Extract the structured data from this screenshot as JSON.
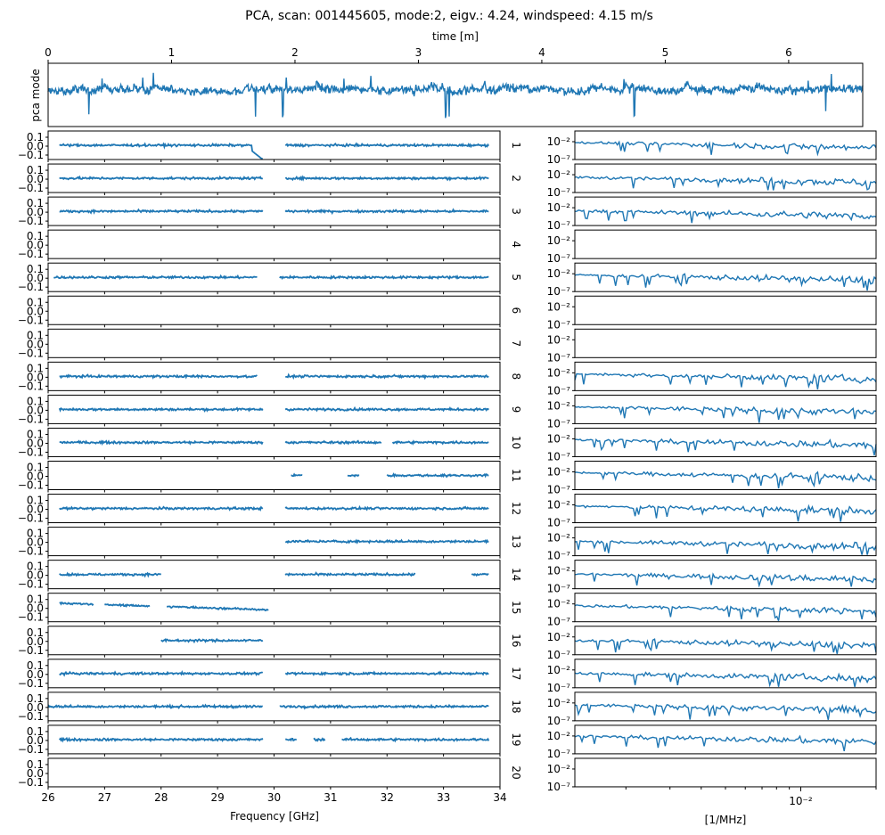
{
  "figure": {
    "title": "PCA, scan: 001445605, mode:2, eigv.: 4.24, windspeed: 4.15 m/s",
    "series_color": "#1f77b4"
  },
  "chart_data": [
    {
      "id": "timeseries",
      "type": "line",
      "xlabel": "time [m]",
      "ylabel": "pca mode",
      "xlim": [
        0,
        6.6
      ],
      "xticks": [
        "0",
        "1",
        "2",
        "3",
        "4",
        "5",
        "6"
      ],
      "yticks_visible": false,
      "description_of_data": "noisy PCA mode time series oscillating around zero with occasional negative spikes",
      "spikes_at_minutes": [
        0.33,
        1.68,
        1.9,
        3.22,
        3.25,
        4.75,
        6.3
      ]
    },
    {
      "id": "spectra",
      "type": "line",
      "xlabel": "Frequency [GHz]",
      "xlim": [
        26,
        34
      ],
      "xticks": [
        "26",
        "27",
        "28",
        "29",
        "30",
        "31",
        "32",
        "33",
        "34"
      ],
      "ylim": [
        -0.15,
        0.17
      ],
      "yticks": [
        "0.1",
        "0.0",
        "−0.1"
      ],
      "panel_labels": [
        "1",
        "2",
        "3",
        "4",
        "5",
        "6",
        "7",
        "8",
        "9",
        "10",
        "11",
        "12",
        "13",
        "14",
        "15",
        "16",
        "17",
        "18",
        "19",
        "20"
      ],
      "empty_panels": [
        "4",
        "6",
        "7",
        "20"
      ],
      "segments_ghz": {
        "1": [
          [
            26.2,
            29.8
          ],
          [
            30.2,
            33.8
          ]
        ],
        "2": [
          [
            26.2,
            29.8
          ],
          [
            30.2,
            33.8
          ]
        ],
        "3": [
          [
            26.2,
            29.8
          ],
          [
            30.2,
            33.8
          ]
        ],
        "5": [
          [
            26.1,
            29.7
          ],
          [
            30.1,
            33.8
          ]
        ],
        "8": [
          [
            26.2,
            29.7
          ],
          [
            30.2,
            33.8
          ]
        ],
        "9": [
          [
            26.2,
            29.8
          ],
          [
            30.2,
            33.8
          ]
        ],
        "10": [
          [
            26.2,
            29.8
          ],
          [
            30.2,
            31.9
          ],
          [
            32.1,
            33.8
          ]
        ],
        "11": [
          [
            30.3,
            30.5
          ],
          [
            31.3,
            31.5
          ],
          [
            32.0,
            33.8
          ]
        ],
        "12": [
          [
            26.2,
            29.8
          ],
          [
            30.2,
            33.8
          ]
        ],
        "13": [
          [
            30.2,
            33.8
          ]
        ],
        "14": [
          [
            26.2,
            28.0
          ],
          [
            30.2,
            32.5
          ],
          [
            33.5,
            33.8
          ]
        ],
        "15": [
          [
            26.2,
            26.8
          ],
          [
            27.0,
            27.8
          ],
          [
            28.1,
            29.9
          ]
        ],
        "16": [
          [
            28.0,
            29.8
          ]
        ],
        "17": [
          [
            26.2,
            29.8
          ],
          [
            30.2,
            33.8
          ]
        ],
        "18": [
          [
            26.0,
            29.8
          ],
          [
            30.1,
            33.8
          ]
        ],
        "19": [
          [
            26.2,
            29.8
          ],
          [
            30.2,
            30.4
          ],
          [
            30.7,
            30.9
          ],
          [
            31.2,
            33.8
          ]
        ]
      }
    },
    {
      "id": "power_spectra",
      "type": "line",
      "xlabel": "[1/MHz]",
      "xscale": "log",
      "yscale": "log",
      "xlim": [
        0.00125,
        0.02
      ],
      "xticks": [
        "10⁻²"
      ],
      "ylim": [
        1e-07,
        10
      ],
      "yticks": [
        "10⁻²",
        "10⁻⁷"
      ],
      "empty_panels": [
        "4",
        "6",
        "7",
        "20"
      ]
    }
  ]
}
